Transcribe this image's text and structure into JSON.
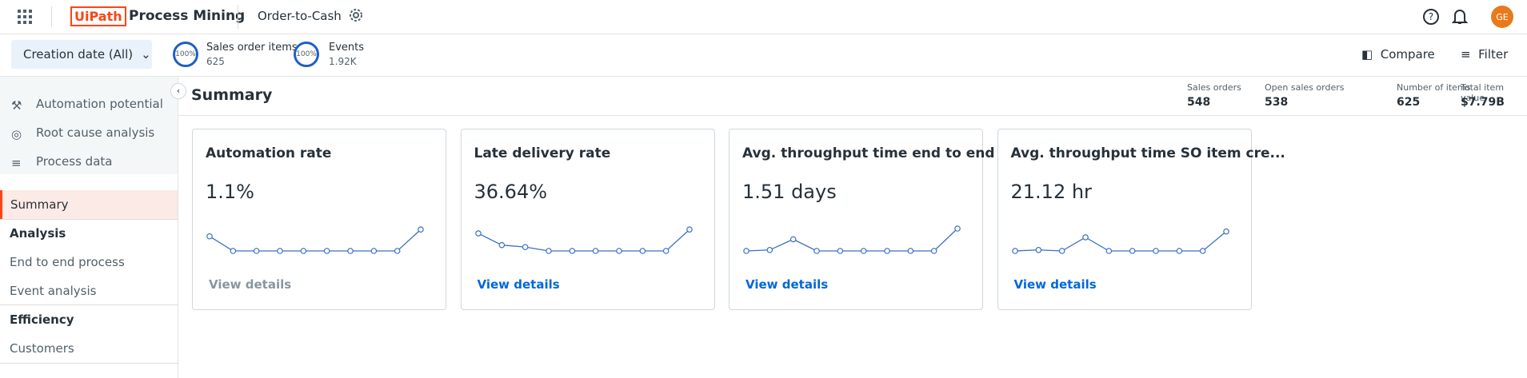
{
  "header": {
    "logo": "UiPath",
    "app_name": "Process Mining",
    "process": "Order-to-Cash",
    "avatar": "GE"
  },
  "filter_bar": {
    "date_filter": "Creation date (All)",
    "metrics": [
      {
        "percent": "100%",
        "label": "Sales order items",
        "value": "625"
      },
      {
        "percent": "100%",
        "label": "Events",
        "value": "1.92K"
      }
    ],
    "compare": "Compare",
    "filter": "Filter"
  },
  "sidebar": {
    "tools": [
      "Automation potential",
      "Root cause analysis",
      "Process data"
    ],
    "summary": "Summary",
    "sections": [
      {
        "title": "Analysis",
        "items": [
          "End to end process",
          "Event analysis"
        ]
      },
      {
        "title": "Efficiency",
        "items": [
          "Customers"
        ]
      }
    ]
  },
  "summary": {
    "title": "Summary",
    "kpis": [
      {
        "label": "Sales orders",
        "value": "548"
      },
      {
        "label": "Open sales orders",
        "value": "538"
      },
      {
        "label": "Number of items",
        "value": "625"
      },
      {
        "label": "Total item value",
        "value": "$7.79B"
      }
    ]
  },
  "cards": [
    {
      "title": "Automation rate",
      "value": "1.1%",
      "link": "View details",
      "trend": [
        15,
        0,
        0,
        0,
        0,
        0,
        0,
        0,
        0,
        22
      ]
    },
    {
      "title": "Late delivery rate",
      "value": "36.64%",
      "link": "View details",
      "trend": [
        18,
        6,
        4,
        0,
        0,
        0,
        0,
        0,
        0,
        22
      ]
    },
    {
      "title": "Avg. throughput time end to end",
      "value": "1.51 days",
      "link": "View details",
      "trend": [
        0,
        1,
        12,
        0,
        0,
        0,
        0,
        0,
        0,
        23
      ]
    },
    {
      "title": "Avg. throughput time SO item cre...",
      "value": "21.12 hr",
      "link": "View details",
      "trend": [
        0,
        1,
        0,
        14,
        0,
        0,
        0,
        0,
        0,
        20
      ]
    }
  ]
}
